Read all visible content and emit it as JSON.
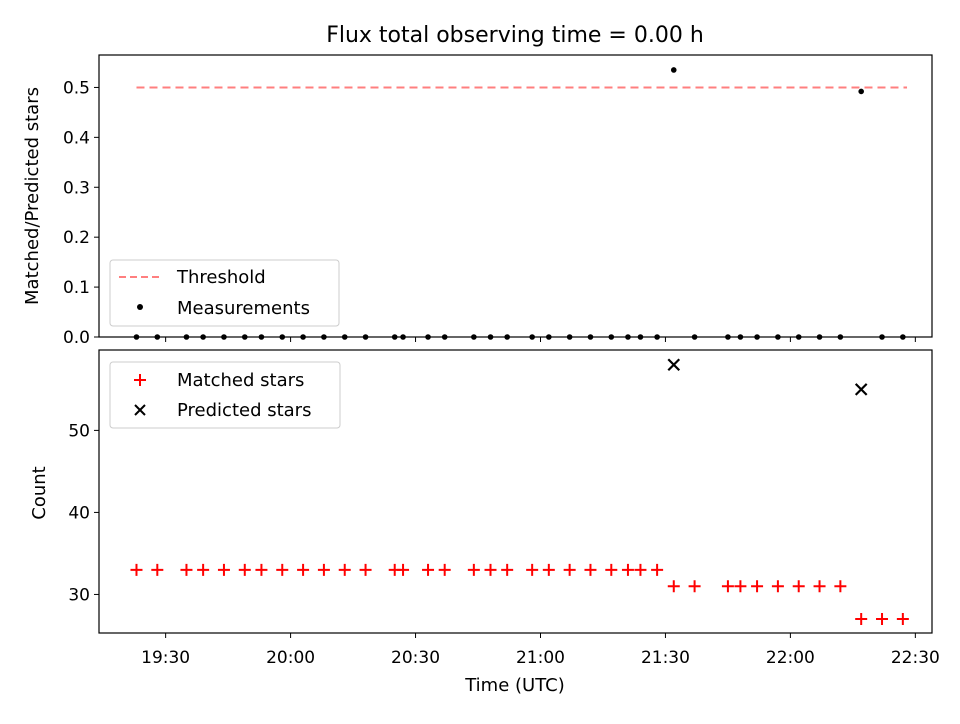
{
  "title": "Flux total observing time = 0.00 h",
  "colors": {
    "threshold": "#ff7f7f",
    "measurement": "#000000",
    "matched": "#ff0000",
    "predicted": "#000000"
  },
  "chart_data": [
    {
      "type": "scatter",
      "ylabel": "Matched/Predicted stars",
      "ylim": [
        0,
        0.565
      ],
      "yticks": [
        0,
        0.1,
        0.2,
        0.3,
        0.4,
        0.5
      ],
      "ytick_labels": [
        "0.0",
        "0.1",
        "0.2",
        "0.3",
        "0.4",
        "0.5"
      ],
      "threshold": {
        "value": 0.5,
        "x_range": [
          "19:23",
          "22:28"
        ]
      },
      "legend": {
        "placement": "lower-left",
        "entries": [
          "Threshold",
          "Measurements"
        ]
      },
      "measurements": [
        [
          "19:23",
          0
        ],
        [
          "19:28",
          0
        ],
        [
          "19:35",
          0
        ],
        [
          "19:39",
          0
        ],
        [
          "19:44",
          0
        ],
        [
          "19:49",
          0
        ],
        [
          "19:53",
          0
        ],
        [
          "19:58",
          0
        ],
        [
          "20:03",
          0
        ],
        [
          "20:08",
          0
        ],
        [
          "20:13",
          0
        ],
        [
          "20:18",
          0
        ],
        [
          "20:25",
          0
        ],
        [
          "20:27",
          0
        ],
        [
          "20:33",
          0
        ],
        [
          "20:37",
          0
        ],
        [
          "20:44",
          0
        ],
        [
          "20:48",
          0
        ],
        [
          "20:52",
          0
        ],
        [
          "20:58",
          0
        ],
        [
          "21:02",
          0
        ],
        [
          "21:07",
          0
        ],
        [
          "21:12",
          0
        ],
        [
          "21:17",
          0
        ],
        [
          "21:21",
          0
        ],
        [
          "21:24",
          0
        ],
        [
          "21:28",
          0
        ],
        [
          "21:32",
          0.535
        ],
        [
          "21:37",
          0
        ],
        [
          "21:45",
          0
        ],
        [
          "21:48",
          0
        ],
        [
          "21:52",
          0
        ],
        [
          "21:57",
          0
        ],
        [
          "22:02",
          0
        ],
        [
          "22:07",
          0
        ],
        [
          "22:12",
          0
        ],
        [
          "22:17",
          0.492
        ],
        [
          "22:22",
          0
        ],
        [
          "22:27",
          0
        ]
      ]
    },
    {
      "type": "scatter",
      "xlabel": "Time (UTC)",
      "ylabel": "Count",
      "ylim": [
        25.3,
        59.8
      ],
      "yticks": [
        30,
        40,
        50
      ],
      "ytick_labels": [
        "30",
        "40",
        "50"
      ],
      "x_tick_labels": [
        "19:30",
        "20:00",
        "20:30",
        "21:00",
        "21:30",
        "22:00",
        "22:30"
      ],
      "xlim": [
        "19:14",
        "22:34"
      ],
      "legend": {
        "placement": "top-left",
        "entries": [
          "Matched stars",
          "Predicted stars"
        ]
      },
      "series": [
        {
          "name": "Matched stars",
          "marker": "+",
          "points": [
            [
              "19:23",
              33
            ],
            [
              "19:28",
              33
            ],
            [
              "19:35",
              33
            ],
            [
              "19:39",
              33
            ],
            [
              "19:44",
              33
            ],
            [
              "19:49",
              33
            ],
            [
              "19:53",
              33
            ],
            [
              "19:58",
              33
            ],
            [
              "20:03",
              33
            ],
            [
              "20:08",
              33
            ],
            [
              "20:13",
              33
            ],
            [
              "20:18",
              33
            ],
            [
              "20:25",
              33
            ],
            [
              "20:27",
              33
            ],
            [
              "20:33",
              33
            ],
            [
              "20:37",
              33
            ],
            [
              "20:44",
              33
            ],
            [
              "20:48",
              33
            ],
            [
              "20:52",
              33
            ],
            [
              "20:58",
              33
            ],
            [
              "21:02",
              33
            ],
            [
              "21:07",
              33
            ],
            [
              "21:12",
              33
            ],
            [
              "21:17",
              33
            ],
            [
              "21:21",
              33
            ],
            [
              "21:24",
              33
            ],
            [
              "21:28",
              33
            ],
            [
              "21:32",
              31
            ],
            [
              "21:37",
              31
            ],
            [
              "21:45",
              31
            ],
            [
              "21:48",
              31
            ],
            [
              "21:52",
              31
            ],
            [
              "21:57",
              31
            ],
            [
              "22:02",
              31
            ],
            [
              "22:07",
              31
            ],
            [
              "22:12",
              31
            ],
            [
              "22:17",
              27
            ],
            [
              "22:22",
              27
            ],
            [
              "22:27",
              27
            ]
          ]
        },
        {
          "name": "Predicted stars",
          "marker": "x",
          "points": [
            [
              "21:32",
              58
            ],
            [
              "22:17",
              55
            ]
          ]
        }
      ]
    }
  ]
}
